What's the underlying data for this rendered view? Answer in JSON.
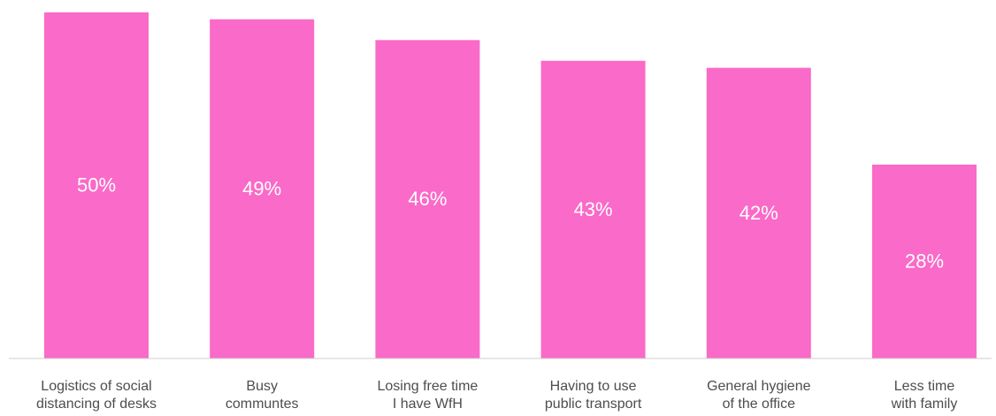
{
  "chart_data": {
    "type": "bar",
    "title": "",
    "xlabel": "",
    "ylabel": "",
    "categories": [
      [
        "Logistics of social",
        "distancing of desks"
      ],
      [
        "Busy",
        "communtes"
      ],
      [
        "Losing free time",
        "I have WfH"
      ],
      [
        "Having to use",
        "public transport"
      ],
      [
        "General hygiene",
        "of the office"
      ],
      [
        "Less time",
        "with family"
      ]
    ],
    "values": [
      50,
      49,
      46,
      43,
      42,
      28
    ],
    "value_labels": [
      "50%",
      "49%",
      "46%",
      "43%",
      "42%",
      "28%"
    ],
    "ylim": [
      0,
      50
    ],
    "grid": false,
    "legend": "none"
  },
  "colors": {
    "bar": "#fa6ac8",
    "bar_text": "#ffffff",
    "category_text": "#4d4d4d",
    "axis": "#cccccc"
  }
}
